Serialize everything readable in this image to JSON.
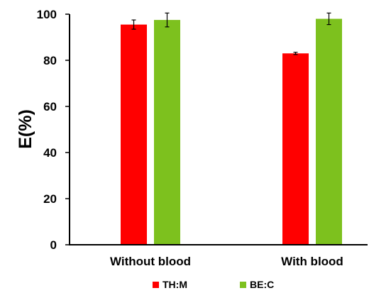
{
  "chart_data": {
    "type": "bar",
    "categories": [
      "Without blood",
      "With blood"
    ],
    "series": [
      {
        "name": "TH:M",
        "color": "#ff0000",
        "values": [
          95.5,
          83
        ],
        "errors": [
          2,
          0.5
        ]
      },
      {
        "name": "BE:C",
        "color": "#7dc11e",
        "values": [
          97.5,
          98
        ],
        "errors": [
          3,
          2.5
        ]
      }
    ],
    "ylabel": "E(%)",
    "xlabel": "",
    "title": "",
    "ylim": [
      0,
      100
    ],
    "yticks": [
      "0",
      "20",
      "40",
      "60",
      "80",
      "100"
    ],
    "grid": false,
    "legend_position": "bottom"
  }
}
